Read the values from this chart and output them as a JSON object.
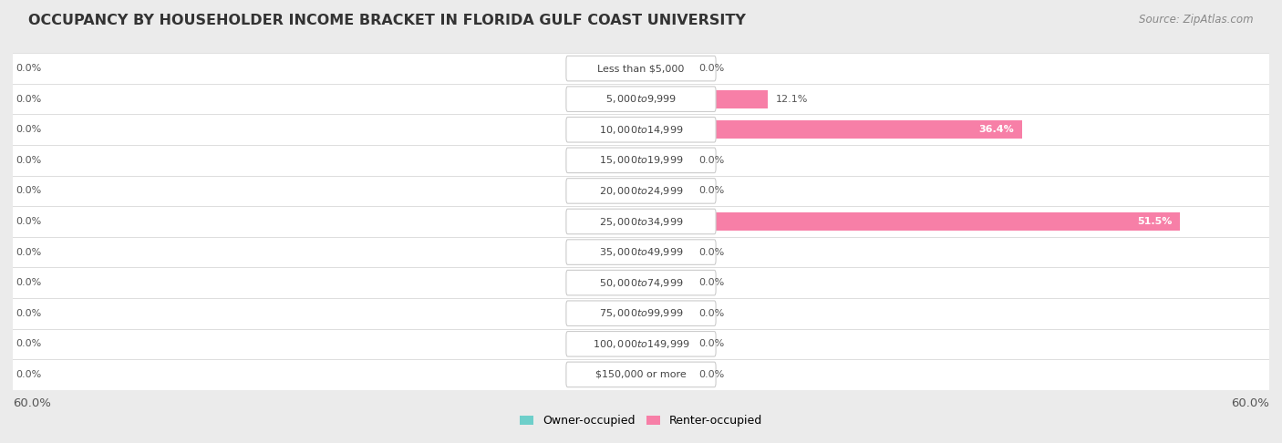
{
  "title": "OCCUPANCY BY HOUSEHOLDER INCOME BRACKET IN FLORIDA GULF COAST UNIVERSITY",
  "source": "Source: ZipAtlas.com",
  "categories": [
    "Less than $5,000",
    "$5,000 to $9,999",
    "$10,000 to $14,999",
    "$15,000 to $19,999",
    "$20,000 to $24,999",
    "$25,000 to $34,999",
    "$35,000 to $49,999",
    "$50,000 to $74,999",
    "$75,000 to $99,999",
    "$100,000 to $149,999",
    "$150,000 or more"
  ],
  "owner_values": [
    0.0,
    0.0,
    0.0,
    0.0,
    0.0,
    0.0,
    0.0,
    0.0,
    0.0,
    0.0,
    0.0
  ],
  "renter_values": [
    0.0,
    12.1,
    36.4,
    0.0,
    0.0,
    51.5,
    0.0,
    0.0,
    0.0,
    0.0,
    0.0
  ],
  "owner_color": "#6ecfca",
  "renter_color": "#f77fa7",
  "renter_color_dark": "#f0609a",
  "owner_label": "Owner-occupied",
  "renter_label": "Renter-occupied",
  "xlim": 60.0,
  "background_color": "#ebebeb",
  "row_bg_color": "#ffffff",
  "row_alt_color": "#f5f5f5",
  "title_fontsize": 11.5,
  "source_fontsize": 8.5,
  "bar_height": 0.6,
  "stub_size": 5.0,
  "label_fontsize": 8,
  "cat_fontsize": 8
}
